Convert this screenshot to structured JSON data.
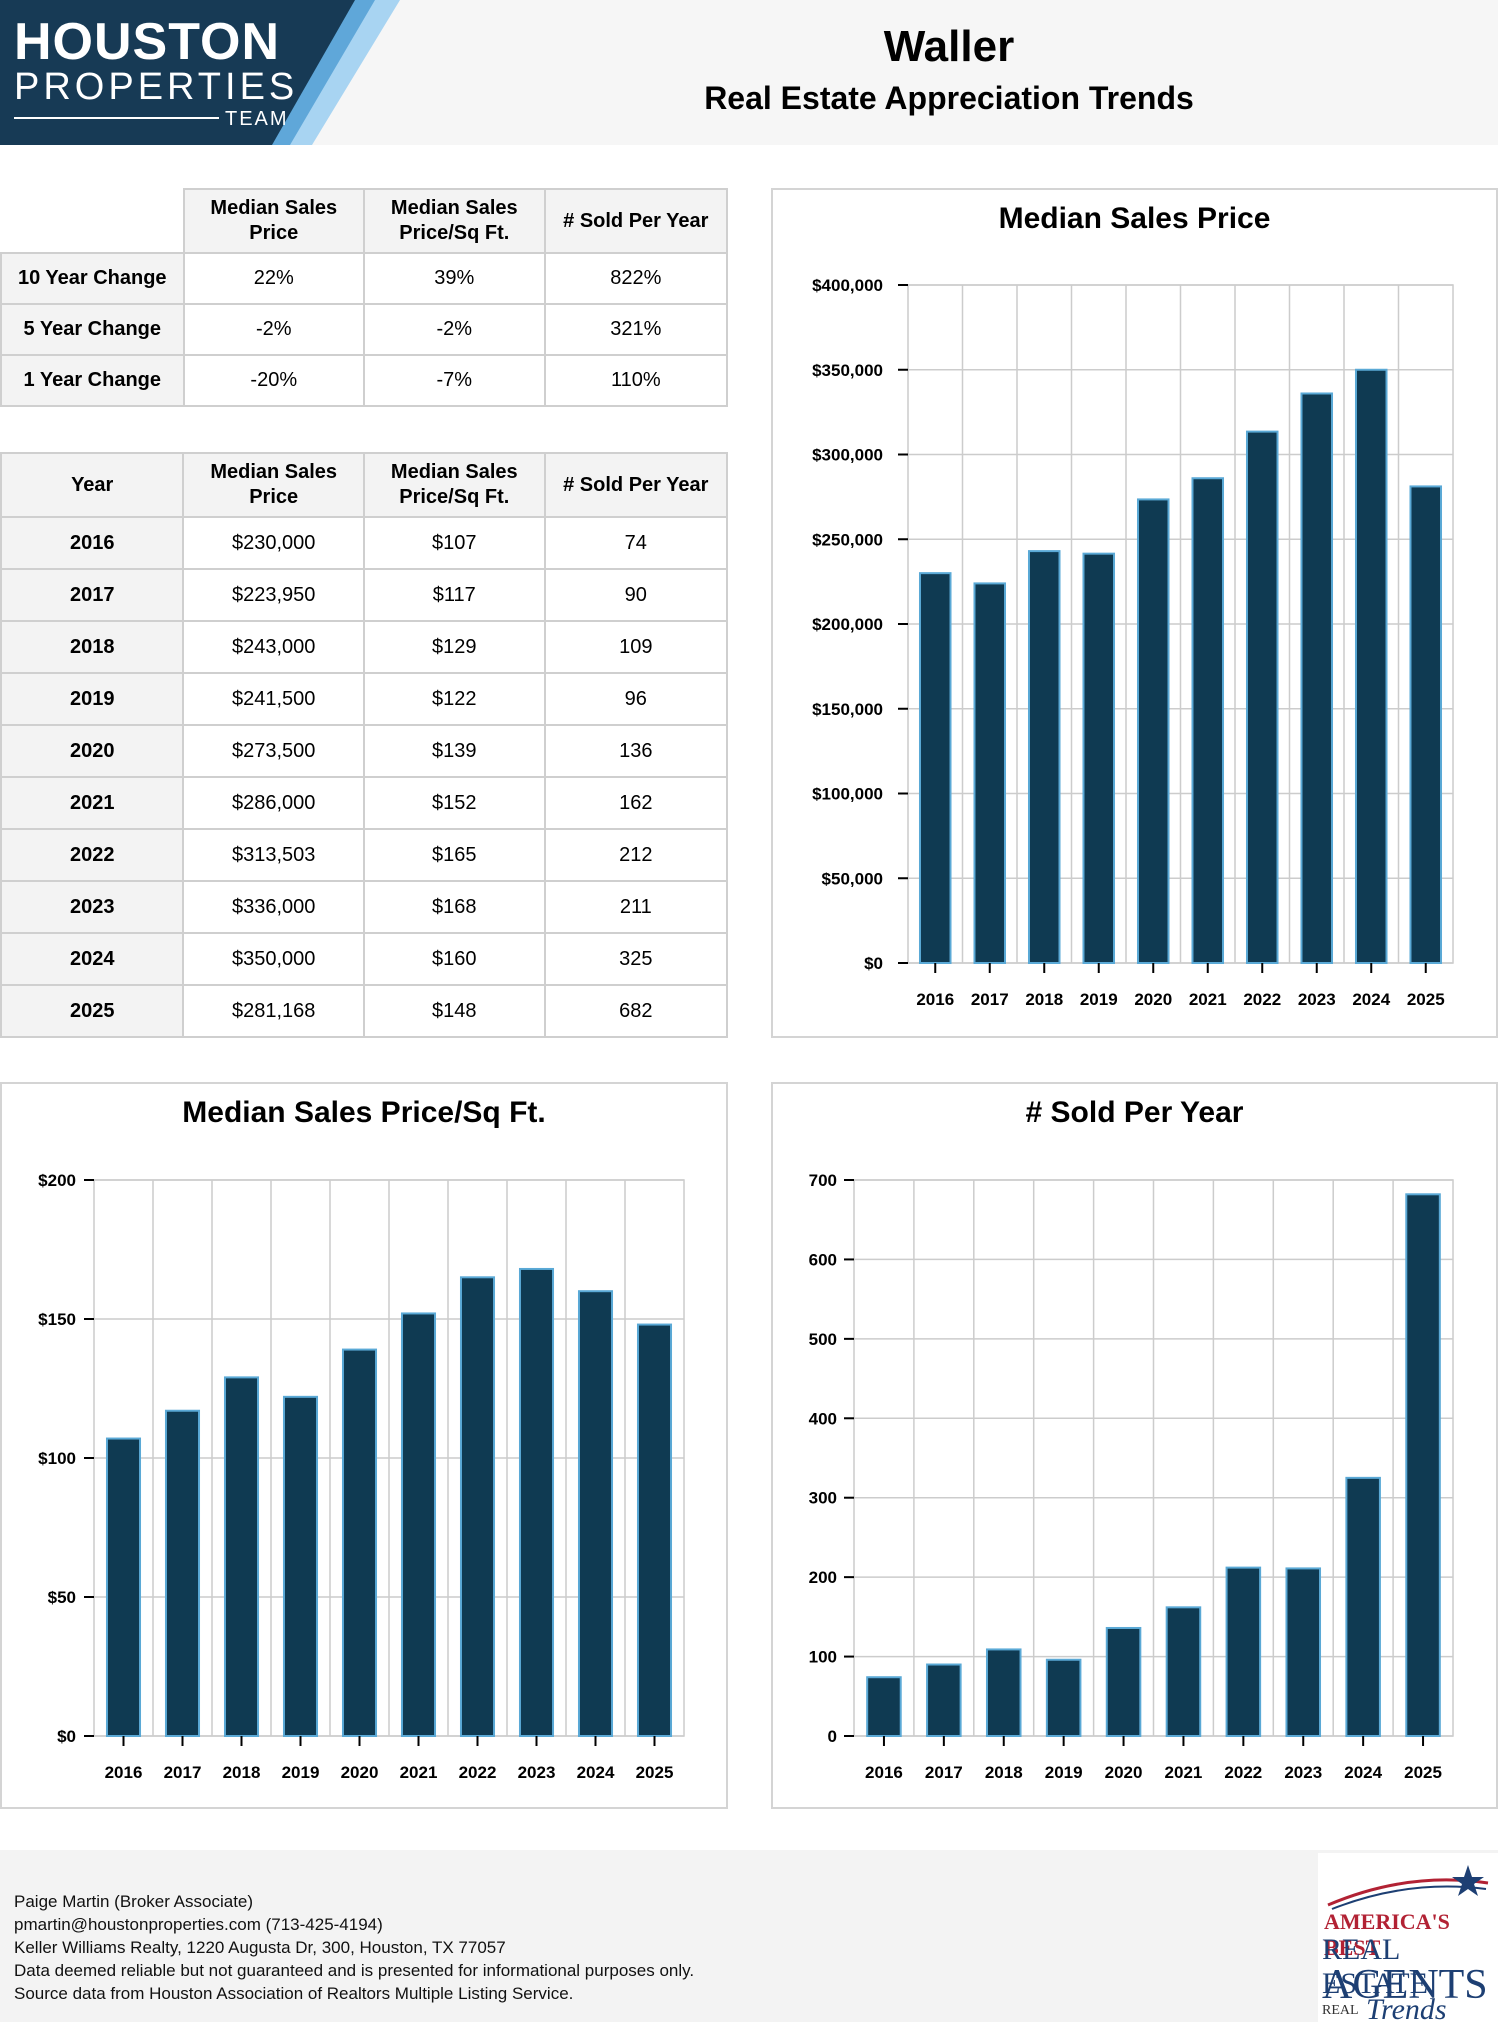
{
  "header": {
    "logo_line1": "HOUSTON",
    "logo_line2": "PROPERTIES",
    "logo_line3": "TEAM",
    "title": "Waller",
    "subtitle": "Real Estate Appreciation Trends"
  },
  "summary_table": {
    "headers": [
      "Median Sales Price",
      "Median Sales Price/Sq Ft.",
      "# Sold Per Year"
    ],
    "rows": [
      {
        "label": "10 Year Change",
        "price": "22%",
        "sqft": "39%",
        "sold": "822%"
      },
      {
        "label": "5 Year Change",
        "price": "-2%",
        "sqft": "-2%",
        "sold": "321%"
      },
      {
        "label": "1 Year Change",
        "price": "-20%",
        "sqft": "-7%",
        "sold": "110%"
      }
    ]
  },
  "yearly_table": {
    "headers": [
      "Year",
      "Median Sales Price",
      "Median Sales Price/Sq Ft.",
      "# Sold Per Year"
    ],
    "rows": [
      {
        "year": "2016",
        "price": "$230,000",
        "sqft": "$107",
        "sold": "74"
      },
      {
        "year": "2017",
        "price": "$223,950",
        "sqft": "$117",
        "sold": "90"
      },
      {
        "year": "2018",
        "price": "$243,000",
        "sqft": "$129",
        "sold": "109"
      },
      {
        "year": "2019",
        "price": "$241,500",
        "sqft": "$122",
        "sold": "96"
      },
      {
        "year": "2020",
        "price": "$273,500",
        "sqft": "$139",
        "sold": "136"
      },
      {
        "year": "2021",
        "price": "$286,000",
        "sqft": "$152",
        "sold": "162"
      },
      {
        "year": "2022",
        "price": "$313,503",
        "sqft": "$165",
        "sold": "212"
      },
      {
        "year": "2023",
        "price": "$336,000",
        "sqft": "$168",
        "sold": "211"
      },
      {
        "year": "2024",
        "price": "$350,000",
        "sqft": "$160",
        "sold": "325"
      },
      {
        "year": "2025",
        "price": "$281,168",
        "sqft": "$148",
        "sold": "682"
      }
    ]
  },
  "chart_data": [
    {
      "id": "price",
      "type": "bar",
      "title": "Median Sales Price",
      "categories": [
        "2016",
        "2017",
        "2018",
        "2019",
        "2020",
        "2021",
        "2022",
        "2023",
        "2024",
        "2025"
      ],
      "values": [
        230000,
        223950,
        243000,
        241500,
        273500,
        286000,
        313503,
        336000,
        350000,
        281168
      ],
      "ylim": [
        0,
        400000
      ],
      "yticks": [
        0,
        50000,
        100000,
        150000,
        200000,
        250000,
        300000,
        350000,
        400000
      ],
      "ytick_labels": [
        "$0",
        "$50,000",
        "$100,000",
        "$150,000",
        "$200,000",
        "$250,000",
        "$300,000",
        "$350,000",
        "$400,000"
      ],
      "grid": true,
      "bar_color": "#0f3a52",
      "bar_edge_color": "#5aa9d6"
    },
    {
      "id": "sqft",
      "type": "bar",
      "title": "Median Sales Price/Sq Ft.",
      "categories": [
        "2016",
        "2017",
        "2018",
        "2019",
        "2020",
        "2021",
        "2022",
        "2023",
        "2024",
        "2025"
      ],
      "values": [
        107,
        117,
        129,
        122,
        139,
        152,
        165,
        168,
        160,
        148
      ],
      "ylim": [
        0,
        200
      ],
      "yticks": [
        0,
        50,
        100,
        150,
        200
      ],
      "ytick_labels": [
        "$0",
        "$50",
        "$100",
        "$150",
        "$200"
      ],
      "grid": true,
      "bar_color": "#0f3a52",
      "bar_edge_color": "#5aa9d6"
    },
    {
      "id": "sold",
      "type": "bar",
      "title": "# Sold Per Year",
      "categories": [
        "2016",
        "2017",
        "2018",
        "2019",
        "2020",
        "2021",
        "2022",
        "2023",
        "2024",
        "2025"
      ],
      "values": [
        74,
        90,
        109,
        96,
        136,
        162,
        212,
        211,
        325,
        682
      ],
      "ylim": [
        0,
        700
      ],
      "yticks": [
        0,
        100,
        200,
        300,
        400,
        500,
        600,
        700
      ],
      "ytick_labels": [
        "0",
        "100",
        "200",
        "300",
        "400",
        "500",
        "600",
        "700"
      ],
      "grid": true,
      "bar_color": "#0f3a52",
      "bar_edge_color": "#5aa9d6"
    }
  ],
  "footer": {
    "lines": [
      "Paige Martin (Broker Associate)",
      "pmartin@houstonproperties.com (713-425-4194)",
      "Keller Williams Realty, 1220 Augusta Dr, 300, Houston, TX 77057",
      "Data deemed reliable but not guaranteed and is presented for informational purposes only.",
      "Source data from Houston Association of Realtors Multiple Listing Service."
    ],
    "badge": {
      "line1": "AMERICA'S BEST",
      "line2": "REAL ESTATE",
      "line3": "AGENTS",
      "line4": "REAL",
      "line5": "Trends"
    }
  },
  "colors": {
    "logo_navy": "#173a55",
    "logo_accent_light": "#a8d4f2",
    "logo_accent_mid": "#5fa7d9",
    "header_bg": "#f6f6f6"
  }
}
